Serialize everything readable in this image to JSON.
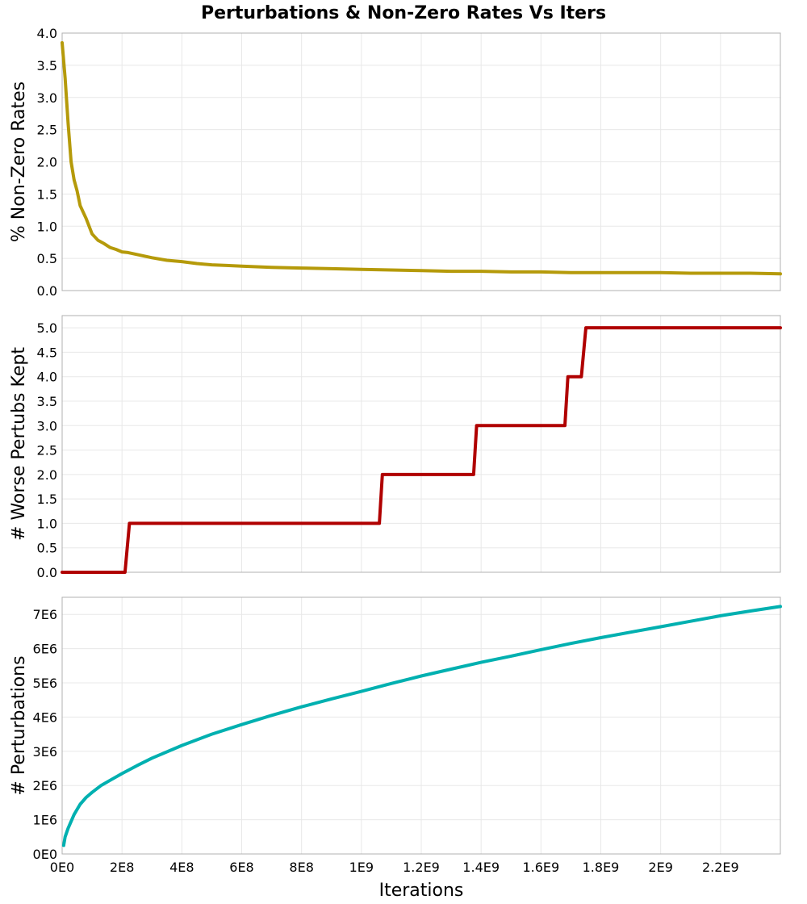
{
  "chart_data": {
    "title": "Perturbations & Non-Zero Rates Vs Iters",
    "xlabel": "Iterations",
    "xlim": [
      0,
      2400000000
    ],
    "xticks": [
      0,
      200000000,
      400000000,
      600000000,
      800000000,
      1000000000,
      1200000000,
      1400000000,
      1600000000,
      1800000000,
      2000000000,
      2200000000
    ],
    "xtick_labels": [
      "0E0",
      "2E8",
      "4E8",
      "6E8",
      "8E8",
      "1E9",
      "1.2E9",
      "1.4E9",
      "1.6E9",
      "1.8E9",
      "2E9",
      "2.2E9"
    ],
    "grid": true,
    "panels": [
      {
        "type": "line",
        "ylabel": "% Non-Zero Rates",
        "ylim": [
          0,
          4.0
        ],
        "yticks": [
          0,
          0.5,
          1.0,
          1.5,
          2.0,
          2.5,
          3.0,
          3.5,
          4.0
        ],
        "ytick_labels": [
          "0.0",
          "0.5",
          "1.0",
          "1.5",
          "2.0",
          "2.5",
          "3.0",
          "3.5",
          "4.0"
        ],
        "color": "#b59a0a",
        "x": [
          0,
          10000000,
          20000000,
          30000000,
          40000000,
          50000000,
          60000000,
          70000000,
          80000000,
          100000000,
          120000000,
          140000000,
          160000000,
          180000000,
          200000000,
          220000000,
          250000000,
          300000000,
          350000000,
          400000000,
          450000000,
          500000000,
          550000000,
          600000000,
          700000000,
          800000000,
          900000000,
          1000000000,
          1100000000,
          1200000000,
          1300000000,
          1400000000,
          1500000000,
          1600000000,
          1700000000,
          1800000000,
          1900000000,
          2000000000,
          2100000000,
          2200000000,
          2300000000,
          2400000000
        ],
        "y": [
          3.85,
          3.3,
          2.6,
          2.0,
          1.72,
          1.55,
          1.32,
          1.22,
          1.12,
          0.88,
          0.78,
          0.73,
          0.67,
          0.64,
          0.6,
          0.59,
          0.56,
          0.51,
          0.47,
          0.45,
          0.42,
          0.4,
          0.39,
          0.38,
          0.36,
          0.35,
          0.34,
          0.33,
          0.32,
          0.31,
          0.3,
          0.3,
          0.29,
          0.29,
          0.28,
          0.28,
          0.28,
          0.28,
          0.27,
          0.27,
          0.27,
          0.26
        ]
      },
      {
        "type": "line",
        "ylabel": "# Worse Pertubs Kept",
        "ylim": [
          0,
          5.25
        ],
        "yticks": [
          0,
          0.5,
          1.0,
          1.5,
          2.0,
          2.5,
          3.0,
          3.5,
          4.0,
          4.5,
          5.0
        ],
        "ytick_labels": [
          "0.0",
          "0.5",
          "1.0",
          "1.5",
          "2.0",
          "2.5",
          "3.0",
          "3.5",
          "4.0",
          "4.5",
          "5.0"
        ],
        "color": "#b00000",
        "x": [
          0,
          210000000,
          225000000,
          1060000000,
          1070000000,
          1375000000,
          1385000000,
          1680000000,
          1690000000,
          1735000000,
          1750000000,
          2400000000
        ],
        "y": [
          0,
          0,
          1,
          1,
          2,
          2,
          3,
          3,
          4,
          4,
          5,
          5
        ]
      },
      {
        "type": "line",
        "ylabel": "# Perturbations",
        "ylim": [
          0,
          7500000
        ],
        "yticks": [
          0,
          1000000,
          2000000,
          3000000,
          4000000,
          5000000,
          6000000,
          7000000
        ],
        "ytick_labels": [
          "0E0",
          "1E6",
          "2E6",
          "3E6",
          "4E6",
          "5E6",
          "6E6",
          "7E6"
        ],
        "color": "#00b0b0",
        "x": [
          5000000,
          10000000,
          20000000,
          30000000,
          40000000,
          50000000,
          60000000,
          80000000,
          100000000,
          130000000,
          160000000,
          200000000,
          250000000,
          300000000,
          400000000,
          500000000,
          600000000,
          700000000,
          800000000,
          900000000,
          1000000000,
          1100000000,
          1200000000,
          1300000000,
          1400000000,
          1500000000,
          1600000000,
          1700000000,
          1800000000,
          1900000000,
          2000000000,
          2100000000,
          2200000000,
          2300000000,
          2400000000
        ],
        "y": [
          250000,
          500000,
          750000,
          950000,
          1150000,
          1300000,
          1450000,
          1650000,
          1800000,
          2000000,
          2150000,
          2350000,
          2580000,
          2800000,
          3170000,
          3500000,
          3780000,
          4050000,
          4300000,
          4530000,
          4750000,
          4980000,
          5200000,
          5400000,
          5600000,
          5780000,
          5970000,
          6150000,
          6320000,
          6480000,
          6640000,
          6800000,
          6960000,
          7100000,
          7230000
        ]
      }
    ]
  }
}
